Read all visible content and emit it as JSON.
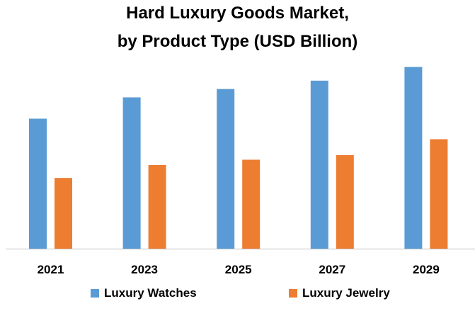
{
  "chart_data": {
    "type": "bar",
    "title_lines": [
      "Hard Luxury Goods Market,",
      "by Product Type (USD Billion)"
    ],
    "xlabel": "",
    "ylabel": "",
    "categories": [
      "2021",
      "2023",
      "2025",
      "2027",
      "2029"
    ],
    "series": [
      {
        "name": "Luxury Watches",
        "color": "#5B9BD5",
        "values": [
          171,
          199,
          210,
          221,
          239
        ]
      },
      {
        "name": "Luxury Jewelry",
        "color": "#ED7D31",
        "values": [
          93,
          110,
          117,
          123,
          144
        ]
      }
    ],
    "ylim": [
      0,
      260
    ],
    "grid": false,
    "legend_position": "bottom"
  }
}
